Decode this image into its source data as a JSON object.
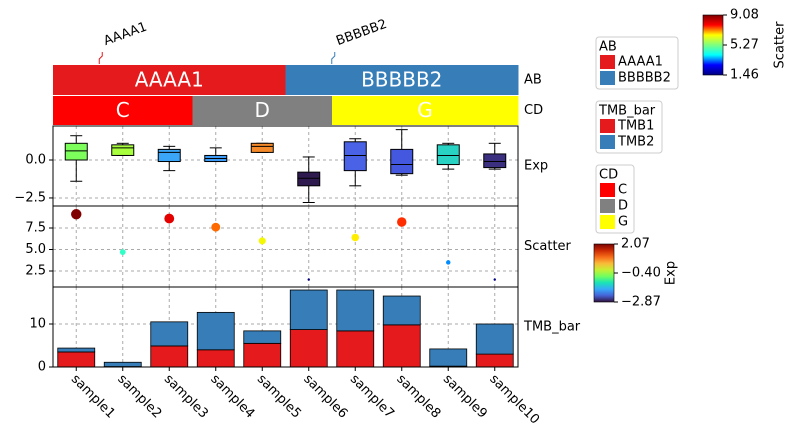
{
  "chart_data": {
    "type": "annotation",
    "categories": [
      "sample1",
      "sample2",
      "sample3",
      "sample4",
      "sample5",
      "sample6",
      "sample7",
      "sample8",
      "sample9",
      "sample10"
    ],
    "AB": {
      "name": "AB",
      "values": [
        "AAAA1",
        "AAAA1",
        "AAAA1",
        "AAAA1",
        "AAAA1",
        "BBBBB2",
        "BBBBB2",
        "BBBBB2",
        "BBBBB2",
        "BBBBB2"
      ]
    },
    "CD": {
      "name": "CD",
      "values": [
        "C",
        "C",
        "C",
        "D",
        "D",
        "D",
        "G",
        "G",
        "G",
        "G"
      ]
    },
    "Exp": {
      "name": "Exp",
      "ylim": [
        -3.03,
        2.24
      ],
      "yticks": [
        {
          "value": 0,
          "label": "0.0"
        },
        {
          "value": -2.5,
          "label": "−2.5"
        }
      ],
      "boxes": [
        {
          "low": -1.4,
          "q1": 0.0,
          "median": 0.6,
          "q3": 1.1,
          "high": 1.6,
          "color": "#7dff5c"
        },
        {
          "low": 0.3,
          "q1": 0.3,
          "median": 0.8,
          "q3": 1.0,
          "high": 1.1,
          "color": "#a8ff3e"
        },
        {
          "low": -0.7,
          "q1": -0.1,
          "median": 0.5,
          "q3": 0.7,
          "high": 0.9,
          "color": "#3ba6f7"
        },
        {
          "low": -0.1,
          "q1": -0.1,
          "median": 0.1,
          "q3": 0.3,
          "high": 0.8,
          "color": "#3d9bf5"
        },
        {
          "low": 0.5,
          "q1": 0.5,
          "median": 0.9,
          "q3": 1.1,
          "high": 1.1,
          "color": "#f58a2a"
        },
        {
          "low": -2.8,
          "q1": -1.7,
          "median": -1.2,
          "q3": -0.8,
          "high": 0.2,
          "color": "#2e1a4e"
        },
        {
          "low": -1.7,
          "q1": -0.7,
          "median": 0.3,
          "q3": 1.2,
          "high": 1.4,
          "color": "#4a63e6"
        },
        {
          "low": -1.0,
          "q1": -0.9,
          "median": -0.3,
          "q3": 0.7,
          "high": 2.0,
          "color": "#4458df"
        },
        {
          "low": -0.6,
          "q1": -0.3,
          "median": 0.3,
          "q3": 1.0,
          "high": 1.1,
          "color": "#29d3c4"
        },
        {
          "low": -0.6,
          "q1": -0.5,
          "median": -0.1,
          "q3": 0.4,
          "high": 1.1,
          "color": "#3b2f80"
        }
      ]
    },
    "Scatter": {
      "name": "Scatter",
      "ylim": [
        0.64,
        10.06
      ],
      "yticks": [
        2.5,
        {
          "value": 5.0,
          "label": "5.0"
        },
        7.5
      ],
      "values": [
        9.1,
        4.7,
        8.6,
        7.6,
        6.0,
        1.5,
        6.4,
        8.2,
        3.5,
        1.5
      ],
      "colors": [
        "#800000",
        "#30ffc6",
        "#e50000",
        "#ff6a00",
        "#f4f802",
        "#00007f",
        "#ffee00",
        "#ff2e00",
        "#008cff",
        "#000084"
      ]
    },
    "TMB_bar": {
      "name": "TMB_bar",
      "ylim": [
        0,
        18.6
      ],
      "yticks": [
        0,
        10
      ],
      "series": [
        {
          "name": "TMB1",
          "color": "#e41a1c",
          "values": [
            3.5,
            0.1,
            4.9,
            4.0,
            5.5,
            8.7,
            8.4,
            9.8,
            0.2,
            3.0
          ]
        },
        {
          "name": "TMB2",
          "color": "#377eb8",
          "values": [
            0.9,
            1.0,
            5.6,
            8.7,
            2.9,
            9.2,
            9.5,
            6.7,
            4.0,
            7.0
          ]
        }
      ]
    },
    "legends": [
      {
        "title": "AB",
        "entries": [
          {
            "label": "AAAA1",
            "color": "#e41a1c"
          },
          {
            "label": "BBBBB2",
            "color": "#377eb8"
          }
        ]
      },
      {
        "title": "TMB_bar",
        "entries": [
          {
            "label": "TMB1",
            "color": "#e41a1c"
          },
          {
            "label": "TMB2",
            "color": "#377eb8"
          }
        ]
      },
      {
        "title": "CD",
        "entries": [
          {
            "label": "C",
            "color": "#ff0000"
          },
          {
            "label": "D",
            "color": "#808080"
          },
          {
            "label": "G",
            "color": "#ffff00"
          }
        ]
      }
    ],
    "colorbars": [
      {
        "title": "Scatter",
        "clim": [
          1.46,
          9.08
        ],
        "ticks": [
          9.08,
          5.27,
          1.46
        ],
        "colors": [
          "#00007f",
          "#0000ff",
          "#00ffff",
          "#7fff7f",
          "#ffff00",
          "#ff0000",
          "#7f0000"
        ]
      },
      {
        "title": "Exp",
        "clim": [
          -2.87,
          2.07
        ],
        "ticks": [
          2.07,
          {
            "value": -0.4,
            "label": "−0.40"
          },
          {
            "value": -2.87,
            "label": "−2.87"
          }
        ],
        "colors": [
          "#30123b",
          "#4662d7",
          "#36aaf9",
          "#1ae4b6",
          "#72fe5e",
          "#c8ef34",
          "#faba39",
          "#f66b19",
          "#ca2a04",
          "#7a0403"
        ]
      }
    ]
  }
}
